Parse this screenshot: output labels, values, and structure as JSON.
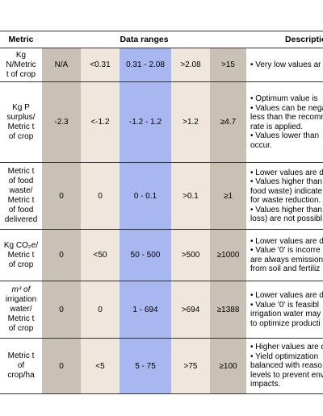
{
  "table": {
    "header": [
      "Metric",
      "Data ranges",
      "Description"
    ],
    "rows": [
      {
        "metric": [
          "Kg",
          "N/Metric",
          "t of crop"
        ],
        "ranges": [
          "N/A",
          "<0.31",
          "0.31 - 2.08",
          ">2.08",
          ">15"
        ],
        "description": [
          "• Very low values ar"
        ]
      },
      {
        "metric": [
          "Kg P",
          "surplus/",
          "Metric t",
          "of crop"
        ],
        "ranges": [
          "-2.3",
          "<-1.2",
          "-1.2 - 1.2",
          ">1.2",
          "≥4.7"
        ],
        "description": [
          "• Optimum value is",
          "• Values can be nega",
          "less than the recomm",
          "rate is applied.",
          "• Values lower than",
          "occur."
        ]
      },
      {
        "metric": [
          "Metric t",
          "of food",
          "waste/",
          "Metric t",
          "of food",
          "delivered"
        ],
        "ranges": [
          "0",
          "0",
          "0 - 0.1",
          ">0.1",
          "≥1"
        ],
        "description": [
          "• Lower values are d",
          "• Values higher than",
          "food waste) indicate",
          "for waste reduction.",
          "• Values higher than",
          "loss) are not possibl"
        ]
      },
      {
        "metric": [
          "Kg CO₂e/",
          "Metric t",
          "of crop"
        ],
        "ranges": [
          "0",
          "<50",
          "50 - 500",
          ">500",
          "≥1000"
        ],
        "description": [
          "• Lower values are d",
          "• Value '0' is incorre",
          "are always emission",
          "from soil and fertiliz"
        ]
      },
      {
        "metric": [
          "m³ of",
          "irrigation",
          "water/",
          "Metric t",
          "of crop"
        ],
        "ranges": [
          "0",
          "0",
          "1 - 694",
          ">694",
          "≥1388"
        ],
        "description": [
          "• Lower values are d",
          "• Value '0' is feasibl",
          "irrigation water may",
          "to optimize producti"
        ]
      },
      {
        "metric": [
          "Metric t",
          "of",
          "crop/ha"
        ],
        "ranges": [
          "0",
          "<5",
          "5 - 75",
          ">75",
          "≥100"
        ],
        "description": [
          "• Higher values are d",
          "• Yield optimization",
          "balanced with reaso",
          "levels to prevent env",
          "impacts."
        ]
      }
    ]
  }
}
